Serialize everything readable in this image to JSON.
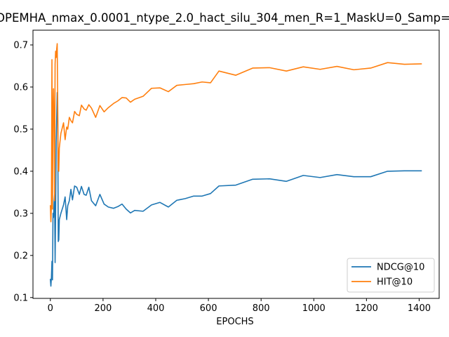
{
  "chart_data": {
    "type": "line",
    "title": "OPEMHA_nmax_0.0001_ntype_2.0_hact_silu_304_men_R=1_MaskU=0_Samp=",
    "xlabel": "EPOCHS",
    "ylabel": "",
    "xlim": [
      -66,
      1476
    ],
    "ylim": [
      0.098,
      0.735
    ],
    "xticks": [
      0,
      200,
      400,
      600,
      800,
      1000,
      1200,
      1400
    ],
    "xtick_labels": [
      "0",
      "200",
      "400",
      "600",
      "800",
      "1000",
      "1200",
      "1400"
    ],
    "yticks": [
      0.1,
      0.2,
      0.3,
      0.4,
      0.5,
      0.6,
      0.7
    ],
    "ytick_labels": [
      "0.1",
      "0.2",
      "0.3",
      "0.4",
      "0.5",
      "0.6",
      "0.7"
    ],
    "grid": false,
    "legend_position": "lower-right",
    "series": [
      {
        "name": "NDCG@10",
        "color": "#1f77b4",
        "x": [
          0,
          2,
          4,
          6,
          8,
          10,
          12,
          14,
          16,
          18,
          20,
          22,
          24,
          26,
          28,
          30,
          32,
          34,
          40,
          50,
          56,
          62,
          66,
          72,
          78,
          84,
          92,
          100,
          110,
          118,
          128,
          136,
          146,
          156,
          172,
          188,
          204,
          220,
          240,
          256,
          272,
          288,
          304,
          320,
          352,
          384,
          416,
          448,
          480,
          512,
          544,
          576,
          608,
          640,
          704,
          768,
          832,
          896,
          960,
          1024,
          1088,
          1152,
          1216,
          1280,
          1344,
          1408
        ],
        "y": [
          0.143,
          0.127,
          0.147,
          0.186,
          0.142,
          0.3,
          0.29,
          0.326,
          0.345,
          0.183,
          0.3,
          0.468,
          0.525,
          0.587,
          0.52,
          0.233,
          0.237,
          0.285,
          0.3,
          0.32,
          0.339,
          0.285,
          0.318,
          0.33,
          0.357,
          0.332,
          0.365,
          0.362,
          0.345,
          0.364,
          0.345,
          0.343,
          0.362,
          0.33,
          0.318,
          0.345,
          0.322,
          0.315,
          0.312,
          0.316,
          0.322,
          0.31,
          0.301,
          0.307,
          0.305,
          0.32,
          0.326,
          0.315,
          0.331,
          0.335,
          0.341,
          0.341,
          0.347,
          0.365,
          0.367,
          0.381,
          0.382,
          0.376,
          0.39,
          0.385,
          0.392,
          0.387,
          0.387,
          0.4,
          0.401,
          0.401
        ]
      },
      {
        "name": "HIT@10",
        "color": "#ff7f0e",
        "x": [
          0,
          2,
          4,
          6,
          8,
          10,
          12,
          14,
          16,
          18,
          20,
          22,
          24,
          26,
          28,
          30,
          32,
          34,
          40,
          50,
          56,
          62,
          66,
          72,
          78,
          84,
          92,
          100,
          110,
          118,
          128,
          136,
          146,
          156,
          172,
          188,
          204,
          220,
          240,
          256,
          272,
          288,
          304,
          320,
          352,
          384,
          416,
          448,
          480,
          512,
          544,
          576,
          608,
          640,
          704,
          768,
          832,
          896,
          960,
          1024,
          1088,
          1152,
          1216,
          1280,
          1344,
          1408
        ],
        "y": [
          0.318,
          0.28,
          0.32,
          0.665,
          0.31,
          0.543,
          0.596,
          0.515,
          0.33,
          0.655,
          0.685,
          0.67,
          0.69,
          0.703,
          0.552,
          0.403,
          0.4,
          0.455,
          0.49,
          0.515,
          0.475,
          0.505,
          0.5,
          0.528,
          0.52,
          0.515,
          0.542,
          0.535,
          0.532,
          0.557,
          0.548,
          0.545,
          0.558,
          0.55,
          0.528,
          0.556,
          0.541,
          0.551,
          0.561,
          0.567,
          0.575,
          0.574,
          0.564,
          0.571,
          0.578,
          0.597,
          0.598,
          0.589,
          0.604,
          0.606,
          0.608,
          0.612,
          0.61,
          0.638,
          0.628,
          0.645,
          0.646,
          0.638,
          0.648,
          0.642,
          0.649,
          0.641,
          0.645,
          0.658,
          0.654,
          0.655
        ]
      }
    ]
  }
}
